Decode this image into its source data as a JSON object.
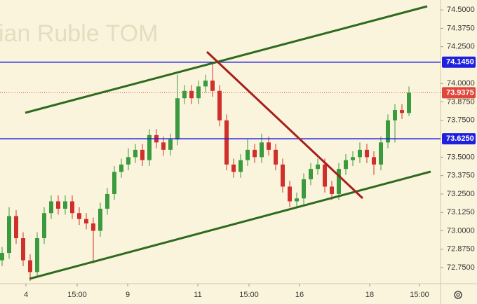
{
  "chart_data": {
    "type": "candlestick",
    "watermark": "ian Ruble TOM",
    "x": [
      0,
      1,
      2,
      3,
      4,
      5,
      6,
      7,
      8,
      9,
      10,
      11,
      12,
      13,
      14,
      15,
      16,
      17,
      18,
      19,
      20,
      21,
      22,
      23,
      24,
      25,
      26,
      27,
      28,
      29,
      30,
      31,
      32,
      33,
      34,
      35,
      36,
      37,
      38,
      39,
      40,
      41,
      42,
      43,
      44,
      45,
      46,
      47,
      48,
      49,
      50,
      51,
      52,
      53,
      54,
      55,
      56,
      57,
      58
    ],
    "open": [
      72.8,
      72.85,
      73.1,
      72.95,
      72.8,
      72.72,
      72.95,
      73.12,
      73.2,
      73.15,
      73.2,
      73.12,
      73.08,
      73.05,
      73.0,
      73.15,
      73.25,
      73.4,
      73.45,
      73.5,
      73.55,
      73.48,
      73.65,
      73.6,
      73.55,
      73.62,
      73.9,
      73.95,
      73.9,
      73.98,
      74.02,
      73.95,
      73.75,
      73.45,
      73.4,
      73.48,
      73.55,
      73.5,
      73.6,
      73.55,
      73.45,
      73.3,
      73.2,
      73.22,
      73.35,
      73.42,
      73.45,
      73.3,
      73.25,
      73.42,
      73.48,
      73.5,
      73.55,
      73.5,
      73.45,
      73.6,
      73.75,
      73.82,
      73.8
    ],
    "high": [
      72.89,
      73.16,
      73.14,
      72.99,
      72.84,
      72.99,
      73.16,
      73.24,
      73.24,
      73.24,
      73.24,
      73.16,
      73.12,
      73.09,
      73.19,
      73.29,
      73.44,
      73.49,
      73.56,
      73.59,
      73.59,
      73.69,
      73.69,
      73.64,
      73.66,
      74.06,
      73.99,
      73.99,
      74.02,
      74.06,
      74.14,
      73.99,
      73.79,
      73.49,
      73.52,
      73.62,
      73.59,
      73.66,
      73.64,
      73.59,
      73.49,
      73.34,
      73.26,
      73.39,
      73.46,
      73.49,
      73.49,
      73.34,
      73.46,
      73.52,
      73.54,
      73.6,
      73.59,
      73.54,
      73.64,
      73.79,
      73.86,
      73.86,
      73.98
    ],
    "low": [
      72.76,
      72.81,
      72.91,
      72.76,
      72.66,
      72.68,
      72.91,
      73.08,
      73.11,
      73.11,
      73.08,
      73.04,
      73.01,
      72.78,
      72.96,
      73.11,
      73.21,
      73.36,
      73.41,
      73.46,
      73.44,
      73.44,
      73.56,
      73.51,
      73.51,
      73.58,
      73.86,
      73.86,
      73.86,
      73.94,
      73.91,
      73.71,
      73.41,
      73.36,
      73.36,
      73.44,
      73.46,
      73.46,
      73.51,
      73.41,
      73.26,
      73.16,
      73.16,
      73.18,
      73.31,
      73.38,
      73.26,
      73.21,
      73.21,
      73.38,
      73.44,
      73.46,
      73.46,
      73.38,
      73.41,
      73.56,
      73.6,
      73.76,
      73.78
    ],
    "close": [
      72.85,
      73.1,
      72.95,
      72.8,
      72.72,
      72.95,
      73.12,
      73.2,
      73.15,
      73.2,
      73.12,
      73.08,
      73.05,
      73.0,
      73.15,
      73.25,
      73.4,
      73.45,
      73.5,
      73.55,
      73.48,
      73.65,
      73.6,
      73.55,
      73.62,
      73.9,
      73.95,
      73.9,
      73.98,
      74.02,
      73.95,
      73.75,
      73.45,
      73.4,
      73.48,
      73.55,
      73.5,
      73.6,
      73.55,
      73.45,
      73.3,
      73.2,
      73.22,
      73.35,
      73.42,
      73.45,
      73.3,
      73.25,
      73.42,
      73.48,
      73.5,
      73.55,
      73.5,
      73.45,
      73.6,
      73.75,
      73.82,
      73.8,
      73.9375
    ],
    "up_color": "#3a9a3e",
    "down_color": "#d0302b",
    "xlim": [
      -0.3,
      62.5
    ],
    "xticks": [
      {
        "value": 3.4,
        "label": "4"
      },
      {
        "value": 10.7,
        "label": "15:00"
      },
      {
        "value": 17.9,
        "label": "9"
      },
      {
        "value": 27.9,
        "label": "11"
      },
      {
        "value": 35.2,
        "label": "15:00"
      },
      {
        "value": 42.4,
        "label": "16"
      },
      {
        "value": 52.4,
        "label": "18"
      },
      {
        "value": 59.5,
        "label": "15:00"
      }
    ],
    "ylim": [
      72.641,
      74.567
    ],
    "yticks": [
      {
        "value": 74.5,
        "label": "74.5000"
      },
      {
        "value": 74.375,
        "label": "74.3750"
      },
      {
        "value": 74.25,
        "label": "74.2500"
      },
      {
        "value": 74.0,
        "label": "74.0000"
      },
      {
        "value": 73.875,
        "label": "73.8750"
      },
      {
        "value": 73.75,
        "label": "73.7500"
      },
      {
        "value": 73.5,
        "label": "73.5000"
      },
      {
        "value": 73.375,
        "label": "73.3750"
      },
      {
        "value": 73.25,
        "label": "73.2500"
      },
      {
        "value": 73.125,
        "label": "73.1250"
      },
      {
        "value": 73.0,
        "label": "73.0000"
      },
      {
        "value": 72.875,
        "label": "72.8750"
      },
      {
        "value": 72.75,
        "label": "72.7500"
      }
    ],
    "levels": [
      {
        "value": 74.145,
        "label": "74.1450",
        "color": "#1f1fe0"
      },
      {
        "value": 73.625,
        "label": "73.6250",
        "color": "#1f1fe0"
      }
    ],
    "last_price": {
      "value": 73.9375,
      "label": "73.9375",
      "color": "#e0463a"
    }
  }
}
